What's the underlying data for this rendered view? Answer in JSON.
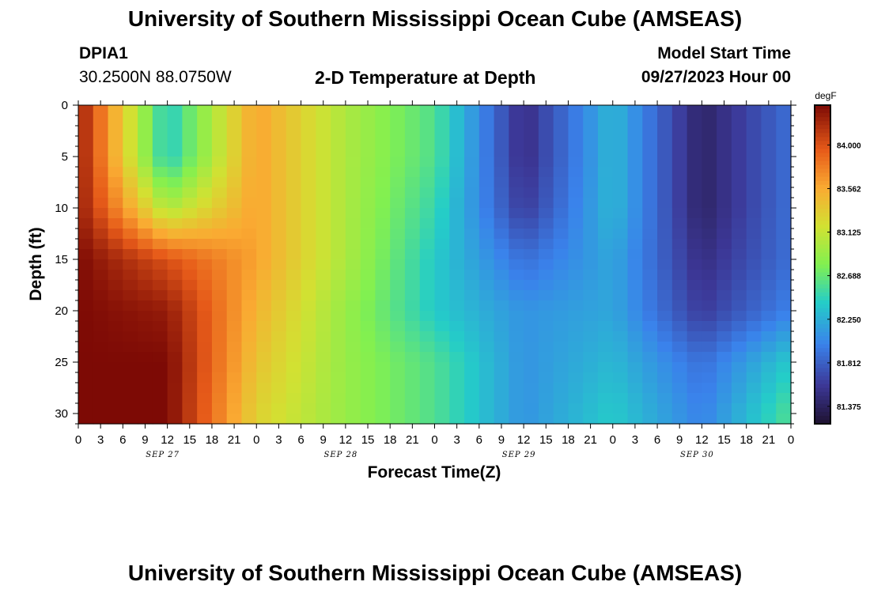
{
  "header": {
    "title": "University of Southern Mississippi Ocean Cube (AMSEAS)",
    "station_id": "DPIA1",
    "station_coords": "30.2500N  88.0750W",
    "chart_title": "2-D Temperature at Depth",
    "model_start_label": "Model Start Time",
    "model_start_value": "09/27/2023 Hour 00"
  },
  "footer": {
    "title": "University of Southern Mississippi Ocean Cube (AMSEAS)"
  },
  "chart_data": {
    "type": "heatmap",
    "title": "2-D Temperature at Depth",
    "xlabel": "Forecast Time(Z)",
    "ylabel": "Depth (ft)",
    "units": "degF",
    "x_hours": [
      0,
      12,
      24,
      36,
      48,
      60,
      72,
      84,
      96
    ],
    "y_depths": [
      0,
      5,
      10,
      15,
      20,
      25,
      30
    ],
    "values": [
      [
        84.3,
        82.4,
        83.6,
        83.0,
        82.6,
        81.5,
        82.3,
        81.4,
        81.9
      ],
      [
        84.3,
        82.4,
        83.6,
        83.0,
        82.6,
        81.5,
        82.3,
        81.4,
        81.9
      ],
      [
        84.3,
        83.0,
        83.6,
        83.0,
        82.5,
        81.6,
        82.3,
        81.4,
        81.9
      ],
      [
        84.4,
        84.0,
        83.6,
        83.0,
        82.4,
        81.9,
        82.2,
        81.5,
        81.9
      ],
      [
        84.4,
        84.3,
        83.5,
        82.9,
        82.4,
        82.1,
        82.2,
        81.6,
        82.0
      ],
      [
        84.4,
        84.4,
        83.4,
        82.9,
        82.6,
        82.1,
        82.3,
        81.9,
        82.4
      ],
      [
        84.4,
        84.4,
        83.3,
        82.9,
        82.6,
        82.1,
        82.4,
        82.0,
        82.6
      ]
    ],
    "xlim": [
      0,
      96
    ],
    "ylim": [
      31,
      0
    ],
    "x_tick_labels": [
      "0",
      "3",
      "6",
      "9",
      "12",
      "15",
      "18",
      "21",
      "0",
      "3",
      "6",
      "9",
      "12",
      "15",
      "18",
      "21",
      "0",
      "3",
      "6",
      "9",
      "12",
      "15",
      "18",
      "21",
      "0",
      "3",
      "6",
      "9",
      "12",
      "15",
      "18",
      "21",
      "0"
    ],
    "y_tick_labels": [
      "0",
      "5",
      "10",
      "15",
      "20",
      "25",
      "30"
    ],
    "date_labels": [
      "SEP 27",
      "SEP 28",
      "SEP 29",
      "SEP 30"
    ],
    "colorbar": {
      "label": "degF",
      "tick_labels": [
        "84.000",
        "83.562",
        "83.125",
        "82.688",
        "82.250",
        "81.812",
        "81.375"
      ],
      "range": [
        81.2,
        84.4
      ]
    },
    "grid": false
  }
}
